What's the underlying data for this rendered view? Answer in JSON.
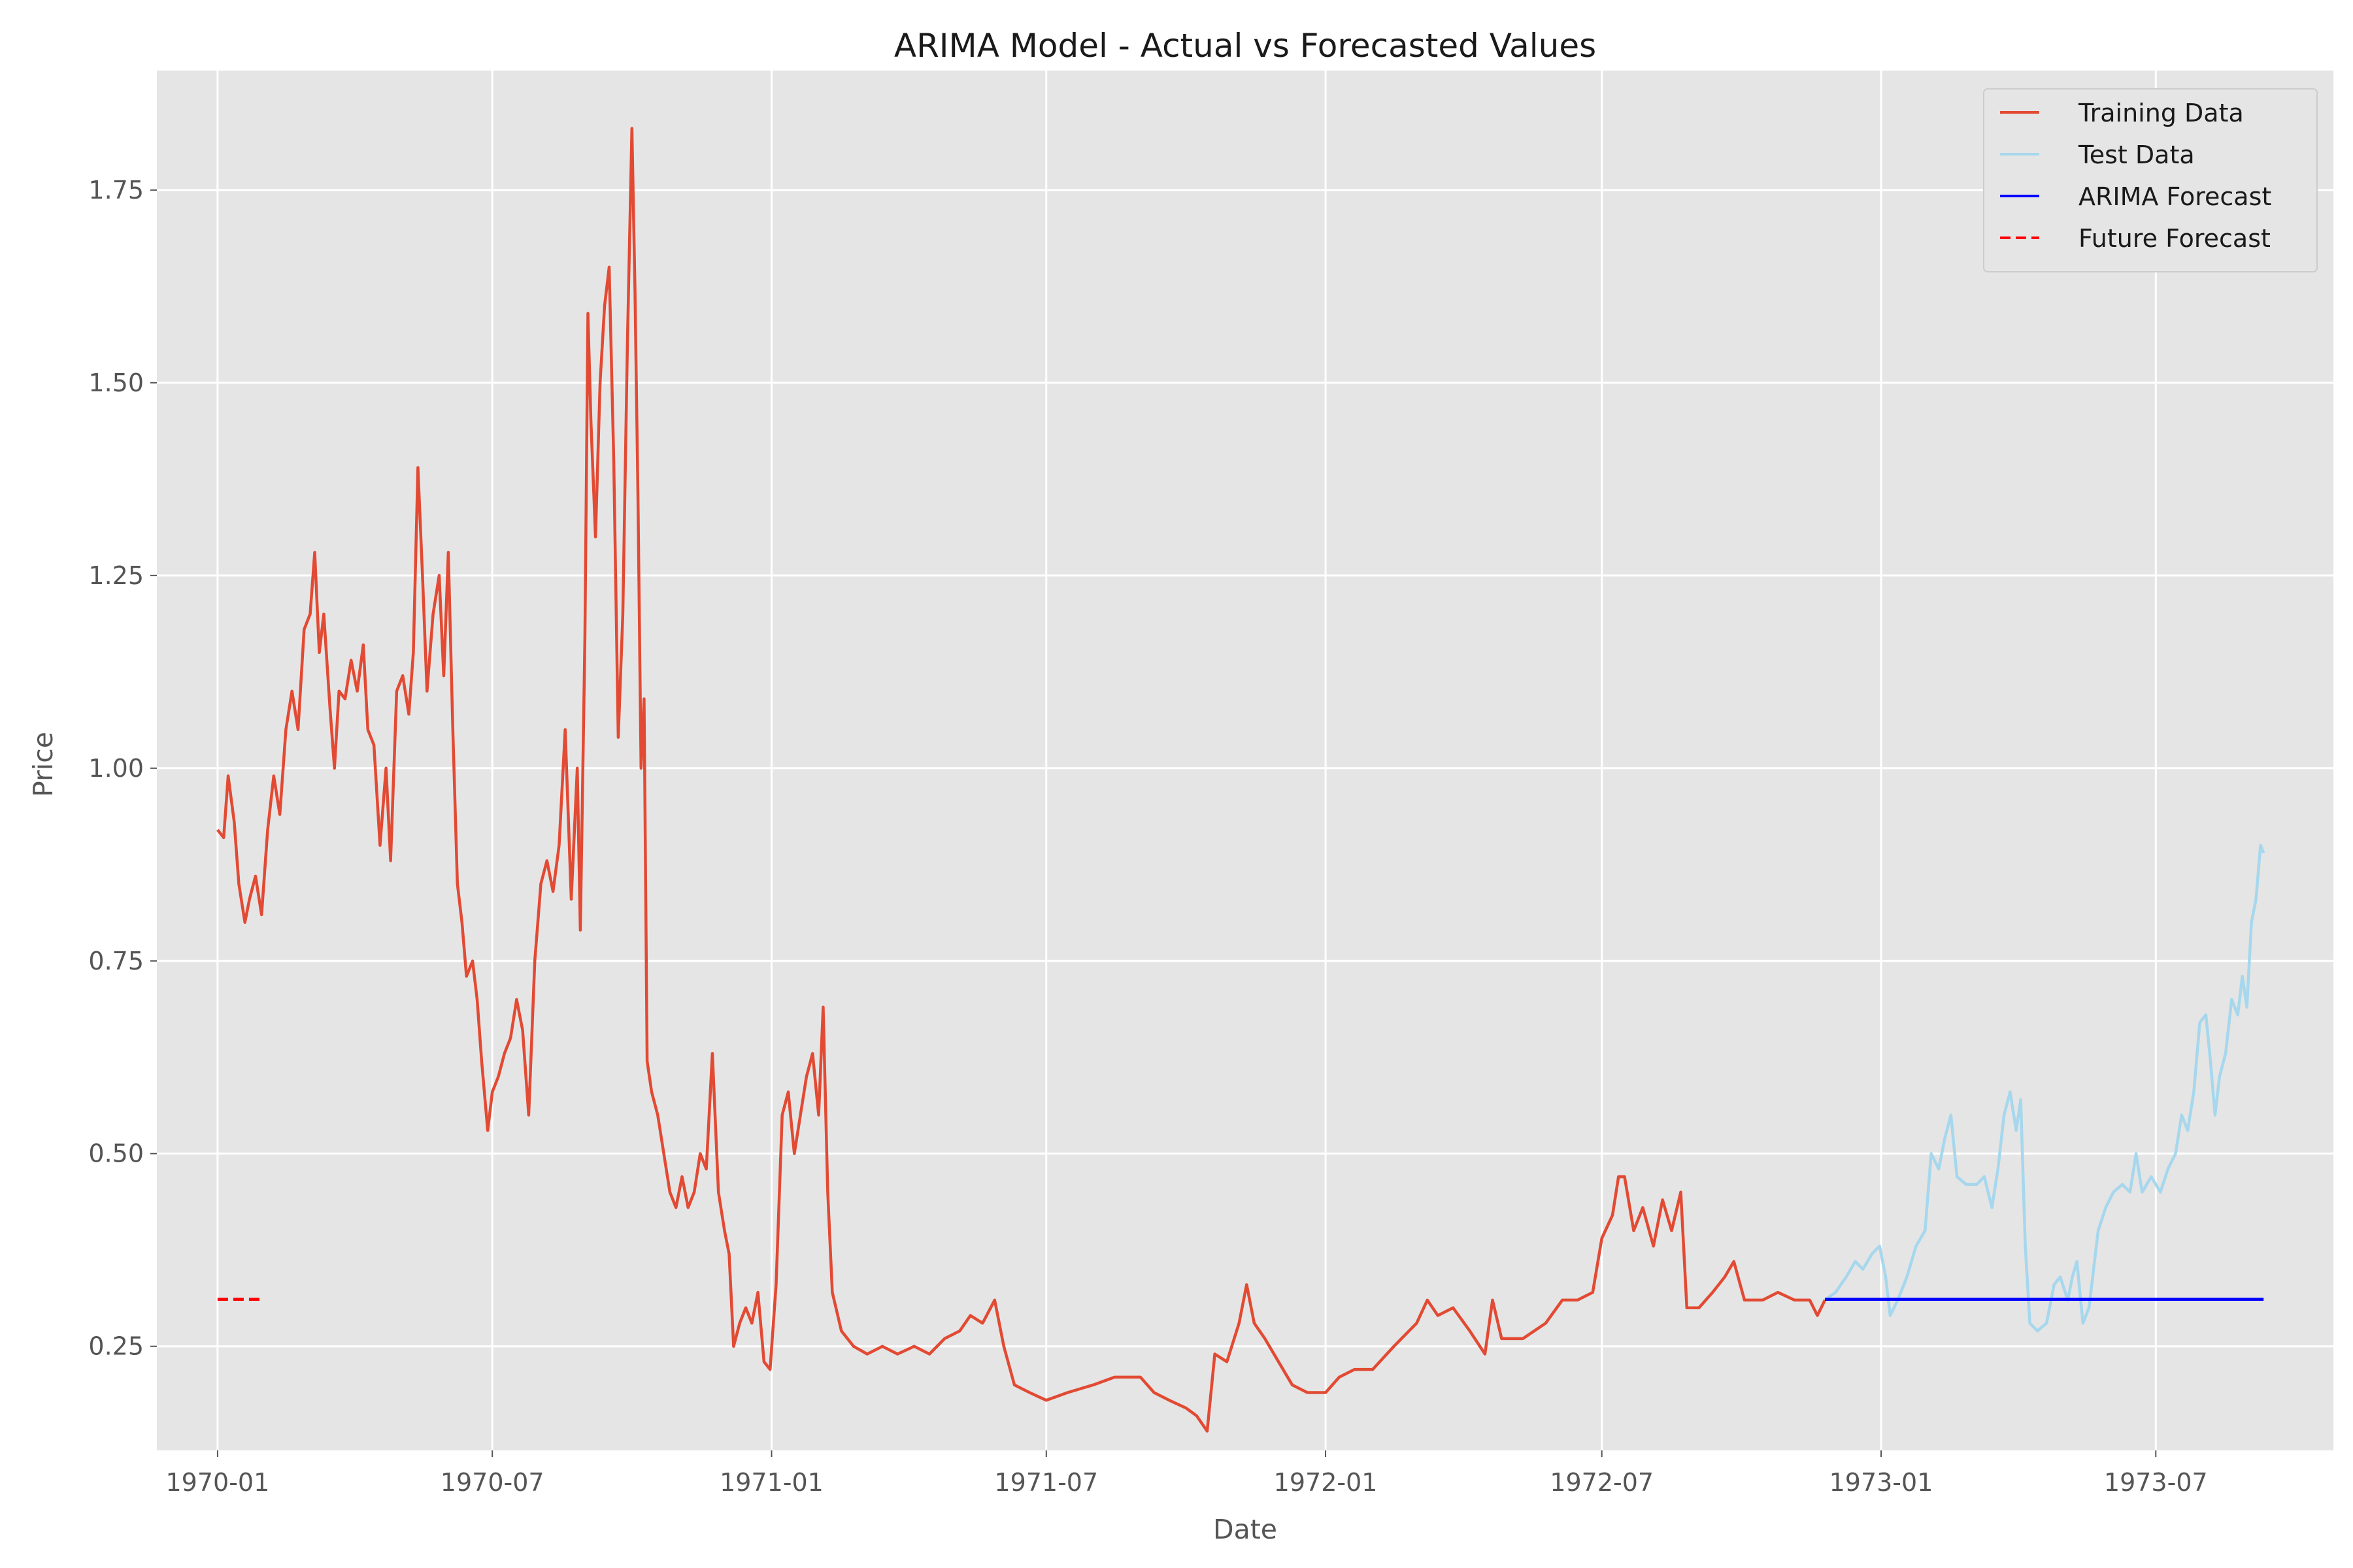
{
  "chart_data": {
    "type": "line",
    "title": "ARIMA Model - Actual vs Forecasted Values",
    "xlabel": "Date",
    "ylabel": "Price",
    "x_axis_type": "date",
    "xlim": [
      "1969-11-22",
      "1973-10-26"
    ],
    "ylim": [
      0.115,
      1.905
    ],
    "xticks": [
      {
        "date": "1970-01-01",
        "label": "1970-01"
      },
      {
        "date": "1970-07-01",
        "label": "1970-07"
      },
      {
        "date": "1971-01-01",
        "label": "1971-01"
      },
      {
        "date": "1971-07-01",
        "label": "1971-07"
      },
      {
        "date": "1972-01-01",
        "label": "1972-01"
      },
      {
        "date": "1972-07-01",
        "label": "1972-07"
      },
      {
        "date": "1973-01-01",
        "label": "1973-01"
      },
      {
        "date": "1973-07-01",
        "label": "1973-07"
      }
    ],
    "yticks": [
      {
        "value": 0.25,
        "label": "0.25"
      },
      {
        "value": 0.5,
        "label": "0.50"
      },
      {
        "value": 0.75,
        "label": "0.75"
      },
      {
        "value": 1.0,
        "label": "1.00"
      },
      {
        "value": 1.25,
        "label": "1.25"
      },
      {
        "value": 1.5,
        "label": "1.50"
      },
      {
        "value": 1.75,
        "label": "1.75"
      }
    ],
    "grid": true,
    "legend_position": "top-right",
    "background_color": "#e5e5e5",
    "grid_color": "#ffffff",
    "series": [
      {
        "name": "Training Data",
        "color": "#e24a33",
        "style": "solid",
        "points": [
          [
            "1970-01-01",
            0.92
          ],
          [
            "1970-01-05",
            0.91
          ],
          [
            "1970-01-08",
            0.99
          ],
          [
            "1970-01-12",
            0.93
          ],
          [
            "1970-01-15",
            0.85
          ],
          [
            "1970-01-19",
            0.8
          ],
          [
            "1970-01-22",
            0.83
          ],
          [
            "1970-01-26",
            0.86
          ],
          [
            "1970-01-30",
            0.81
          ],
          [
            "1970-02-03",
            0.92
          ],
          [
            "1970-02-07",
            0.99
          ],
          [
            "1970-02-11",
            0.94
          ],
          [
            "1970-02-15",
            1.05
          ],
          [
            "1970-02-19",
            1.1
          ],
          [
            "1970-02-23",
            1.05
          ],
          [
            "1970-02-27",
            1.18
          ],
          [
            "1970-03-03",
            1.2
          ],
          [
            "1970-03-06",
            1.28
          ],
          [
            "1970-03-09",
            1.15
          ],
          [
            "1970-03-12",
            1.2
          ],
          [
            "1970-03-16",
            1.08
          ],
          [
            "1970-03-19",
            1.0
          ],
          [
            "1970-03-22",
            1.1
          ],
          [
            "1970-03-26",
            1.09
          ],
          [
            "1970-03-30",
            1.14
          ],
          [
            "1970-04-03",
            1.1
          ],
          [
            "1970-04-07",
            1.16
          ],
          [
            "1970-04-10",
            1.05
          ],
          [
            "1970-04-14",
            1.03
          ],
          [
            "1970-04-18",
            0.9
          ],
          [
            "1970-04-22",
            1.0
          ],
          [
            "1970-04-25",
            0.88
          ],
          [
            "1970-04-29",
            1.1
          ],
          [
            "1970-05-03",
            1.12
          ],
          [
            "1970-05-07",
            1.07
          ],
          [
            "1970-05-10",
            1.15
          ],
          [
            "1970-05-13",
            1.39
          ],
          [
            "1970-05-16",
            1.25
          ],
          [
            "1970-05-19",
            1.1
          ],
          [
            "1970-05-23",
            1.2
          ],
          [
            "1970-05-27",
            1.25
          ],
          [
            "1970-05-30",
            1.12
          ],
          [
            "1970-06-02",
            1.28
          ],
          [
            "1970-06-05",
            1.05
          ],
          [
            "1970-06-08",
            0.85
          ],
          [
            "1970-06-11",
            0.8
          ],
          [
            "1970-06-14",
            0.73
          ],
          [
            "1970-06-18",
            0.75
          ],
          [
            "1970-06-21",
            0.7
          ],
          [
            "1970-06-24",
            0.62
          ],
          [
            "1970-06-28",
            0.53
          ],
          [
            "1970-07-01",
            0.58
          ],
          [
            "1970-07-05",
            0.6
          ],
          [
            "1970-07-09",
            0.63
          ],
          [
            "1970-07-13",
            0.65
          ],
          [
            "1970-07-17",
            0.7
          ],
          [
            "1970-07-21",
            0.66
          ],
          [
            "1970-07-25",
            0.55
          ],
          [
            "1970-07-29",
            0.75
          ],
          [
            "1970-08-02",
            0.85
          ],
          [
            "1970-08-06",
            0.88
          ],
          [
            "1970-08-10",
            0.84
          ],
          [
            "1970-08-14",
            0.9
          ],
          [
            "1970-08-18",
            1.05
          ],
          [
            "1970-08-22",
            0.83
          ],
          [
            "1970-08-26",
            1.0
          ],
          [
            "1970-08-28",
            0.79
          ],
          [
            "1970-08-31",
            1.17
          ],
          [
            "1970-09-02",
            1.59
          ],
          [
            "1970-09-04",
            1.45
          ],
          [
            "1970-09-07",
            1.3
          ],
          [
            "1970-09-10",
            1.5
          ],
          [
            "1970-09-13",
            1.6
          ],
          [
            "1970-09-16",
            1.65
          ],
          [
            "1970-09-19",
            1.4
          ],
          [
            "1970-09-22",
            1.04
          ],
          [
            "1970-09-25",
            1.2
          ],
          [
            "1970-09-28",
            1.55
          ],
          [
            "1970-10-01",
            1.83
          ],
          [
            "1970-10-03",
            1.62
          ],
          [
            "1970-10-05",
            1.35
          ],
          [
            "1970-10-07",
            1.0
          ],
          [
            "1970-10-09",
            1.09
          ],
          [
            "1970-10-11",
            0.62
          ],
          [
            "1970-10-14",
            0.58
          ],
          [
            "1970-10-18",
            0.55
          ],
          [
            "1970-10-22",
            0.5
          ],
          [
            "1970-10-26",
            0.45
          ],
          [
            "1970-10-30",
            0.43
          ],
          [
            "1970-11-03",
            0.47
          ],
          [
            "1970-11-07",
            0.43
          ],
          [
            "1970-11-11",
            0.45
          ],
          [
            "1970-11-15",
            0.5
          ],
          [
            "1970-11-19",
            0.48
          ],
          [
            "1970-11-23",
            0.63
          ],
          [
            "1970-11-27",
            0.45
          ],
          [
            "1970-12-01",
            0.4
          ],
          [
            "1970-12-04",
            0.37
          ],
          [
            "1970-12-07",
            0.25
          ],
          [
            "1970-12-11",
            0.28
          ],
          [
            "1970-12-15",
            0.3
          ],
          [
            "1970-12-19",
            0.28
          ],
          [
            "1970-12-23",
            0.32
          ],
          [
            "1970-12-27",
            0.23
          ],
          [
            "1970-12-31",
            0.22
          ],
          [
            "1971-01-04",
            0.33
          ],
          [
            "1971-01-08",
            0.55
          ],
          [
            "1971-01-12",
            0.58
          ],
          [
            "1971-01-16",
            0.5
          ],
          [
            "1971-01-20",
            0.55
          ],
          [
            "1971-01-24",
            0.6
          ],
          [
            "1971-01-28",
            0.63
          ],
          [
            "1971-02-01",
            0.55
          ],
          [
            "1971-02-04",
            0.69
          ],
          [
            "1971-02-07",
            0.45
          ],
          [
            "1971-02-10",
            0.32
          ],
          [
            "1971-02-16",
            0.27
          ],
          [
            "1971-02-24",
            0.25
          ],
          [
            "1971-03-05",
            0.24
          ],
          [
            "1971-03-15",
            0.25
          ],
          [
            "1971-03-25",
            0.24
          ],
          [
            "1971-04-05",
            0.25
          ],
          [
            "1971-04-15",
            0.24
          ],
          [
            "1971-04-25",
            0.26
          ],
          [
            "1971-05-05",
            0.27
          ],
          [
            "1971-05-12",
            0.29
          ],
          [
            "1971-05-20",
            0.28
          ],
          [
            "1971-05-28",
            0.31
          ],
          [
            "1971-06-03",
            0.25
          ],
          [
            "1971-06-10",
            0.2
          ],
          [
            "1971-06-20",
            0.19
          ],
          [
            "1971-07-01",
            0.18
          ],
          [
            "1971-07-15",
            0.19
          ],
          [
            "1971-08-01",
            0.2
          ],
          [
            "1971-08-15",
            0.21
          ],
          [
            "1971-09-01",
            0.21
          ],
          [
            "1971-09-10",
            0.19
          ],
          [
            "1971-09-20",
            0.18
          ],
          [
            "1971-10-01",
            0.17
          ],
          [
            "1971-10-08",
            0.16
          ],
          [
            "1971-10-15",
            0.14
          ],
          [
            "1971-10-20",
            0.24
          ],
          [
            "1971-10-28",
            0.23
          ],
          [
            "1971-11-05",
            0.28
          ],
          [
            "1971-11-10",
            0.33
          ],
          [
            "1971-11-15",
            0.28
          ],
          [
            "1971-11-22",
            0.26
          ],
          [
            "1971-12-01",
            0.23
          ],
          [
            "1971-12-10",
            0.2
          ],
          [
            "1971-12-20",
            0.19
          ],
          [
            "1972-01-01",
            0.19
          ],
          [
            "1972-01-10",
            0.21
          ],
          [
            "1972-01-20",
            0.22
          ],
          [
            "1972-02-01",
            0.22
          ],
          [
            "1972-02-15",
            0.25
          ],
          [
            "1972-03-01",
            0.28
          ],
          [
            "1972-03-08",
            0.31
          ],
          [
            "1972-03-15",
            0.29
          ],
          [
            "1972-03-25",
            0.3
          ],
          [
            "1972-04-05",
            0.27
          ],
          [
            "1972-04-15",
            0.24
          ],
          [
            "1972-04-20",
            0.31
          ],
          [
            "1972-04-26",
            0.26
          ],
          [
            "1972-05-10",
            0.26
          ],
          [
            "1972-05-25",
            0.28
          ],
          [
            "1972-06-05",
            0.31
          ],
          [
            "1972-06-15",
            0.31
          ],
          [
            "1972-06-25",
            0.32
          ],
          [
            "1972-07-01",
            0.39
          ],
          [
            "1972-07-08",
            0.42
          ],
          [
            "1972-07-12",
            0.47
          ],
          [
            "1972-07-16",
            0.47
          ],
          [
            "1972-07-22",
            0.4
          ],
          [
            "1972-07-28",
            0.43
          ],
          [
            "1972-08-04",
            0.38
          ],
          [
            "1972-08-10",
            0.44
          ],
          [
            "1972-08-16",
            0.4
          ],
          [
            "1972-08-22",
            0.45
          ],
          [
            "1972-08-26",
            0.3
          ],
          [
            "1972-09-03",
            0.3
          ],
          [
            "1972-09-12",
            0.32
          ],
          [
            "1972-09-20",
            0.34
          ],
          [
            "1972-09-26",
            0.36
          ],
          [
            "1972-10-03",
            0.31
          ],
          [
            "1972-10-15",
            0.31
          ],
          [
            "1972-10-25",
            0.32
          ],
          [
            "1972-11-05",
            0.31
          ],
          [
            "1972-11-15",
            0.31
          ],
          [
            "1972-11-20",
            0.29
          ],
          [
            "1972-11-25",
            0.31
          ]
        ]
      },
      {
        "name": "Test Data",
        "color": "#a6d7ed",
        "style": "solid",
        "points": [
          [
            "1972-11-25",
            0.31
          ],
          [
            "1972-12-02",
            0.32
          ],
          [
            "1972-12-09",
            0.34
          ],
          [
            "1972-12-15",
            0.36
          ],
          [
            "1972-12-20",
            0.35
          ],
          [
            "1972-12-26",
            0.37
          ],
          [
            "1972-12-31",
            0.38
          ],
          [
            "1973-01-04",
            0.34
          ],
          [
            "1973-01-07",
            0.29
          ],
          [
            "1973-01-12",
            0.31
          ],
          [
            "1973-01-18",
            0.34
          ],
          [
            "1973-01-24",
            0.38
          ],
          [
            "1973-01-30",
            0.4
          ],
          [
            "1973-02-03",
            0.5
          ],
          [
            "1973-02-08",
            0.48
          ],
          [
            "1973-02-12",
            0.52
          ],
          [
            "1973-02-16",
            0.55
          ],
          [
            "1973-02-20",
            0.47
          ],
          [
            "1973-02-26",
            0.46
          ],
          [
            "1973-03-05",
            0.46
          ],
          [
            "1973-03-10",
            0.47
          ],
          [
            "1973-03-15",
            0.43
          ],
          [
            "1973-03-19",
            0.48
          ],
          [
            "1973-03-23",
            0.55
          ],
          [
            "1973-03-27",
            0.58
          ],
          [
            "1973-03-31",
            0.53
          ],
          [
            "1973-04-03",
            0.57
          ],
          [
            "1973-04-06",
            0.38
          ],
          [
            "1973-04-09",
            0.28
          ],
          [
            "1973-04-14",
            0.27
          ],
          [
            "1973-04-20",
            0.28
          ],
          [
            "1973-04-25",
            0.33
          ],
          [
            "1973-04-29",
            0.34
          ],
          [
            "1973-05-04",
            0.31
          ],
          [
            "1973-05-07",
            0.34
          ],
          [
            "1973-05-10",
            0.36
          ],
          [
            "1973-05-14",
            0.28
          ],
          [
            "1973-05-18",
            0.3
          ],
          [
            "1973-05-24",
            0.4
          ],
          [
            "1973-05-29",
            0.43
          ],
          [
            "1973-06-03",
            0.45
          ],
          [
            "1973-06-09",
            0.46
          ],
          [
            "1973-06-14",
            0.45
          ],
          [
            "1973-06-18",
            0.5
          ],
          [
            "1973-06-22",
            0.45
          ],
          [
            "1973-06-28",
            0.47
          ],
          [
            "1973-07-04",
            0.45
          ],
          [
            "1973-07-09",
            0.48
          ],
          [
            "1973-07-14",
            0.5
          ],
          [
            "1973-07-18",
            0.55
          ],
          [
            "1973-07-22",
            0.53
          ],
          [
            "1973-07-26",
            0.58
          ],
          [
            "1973-07-30",
            0.67
          ],
          [
            "1973-08-03",
            0.68
          ],
          [
            "1973-08-06",
            0.62
          ],
          [
            "1973-08-09",
            0.55
          ],
          [
            "1973-08-12",
            0.6
          ],
          [
            "1973-08-16",
            0.63
          ],
          [
            "1973-08-20",
            0.7
          ],
          [
            "1973-08-24",
            0.68
          ],
          [
            "1973-08-27",
            0.73
          ],
          [
            "1973-08-30",
            0.69
          ],
          [
            "1973-09-02",
            0.8
          ],
          [
            "1973-09-05",
            0.83
          ],
          [
            "1973-09-08",
            0.9
          ],
          [
            "1973-09-10",
            0.89
          ]
        ]
      },
      {
        "name": "ARIMA Forecast",
        "color": "#0000ff",
        "style": "solid",
        "points": [
          [
            "1972-11-25",
            0.311
          ],
          [
            "1973-09-10",
            0.311
          ]
        ]
      },
      {
        "name": "Future Forecast",
        "color": "#ff0000",
        "style": "dashed",
        "points": [
          [
            "1970-01-01",
            0.311
          ],
          [
            "1970-01-31",
            0.311
          ]
        ]
      }
    ]
  }
}
